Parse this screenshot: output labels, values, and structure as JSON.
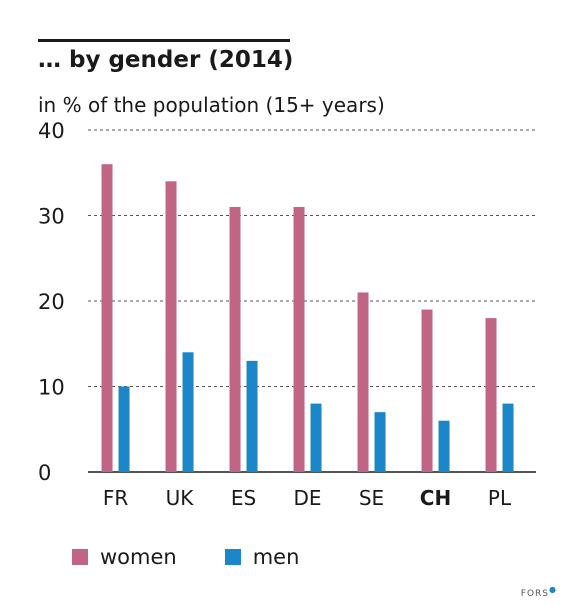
{
  "chart_data": {
    "type": "bar",
    "title": "… by gender (2014)",
    "subtitle": "in % of the population (15+ years)",
    "categories": [
      "FR",
      "UK",
      "ES",
      "DE",
      "SE",
      "CH",
      "PL"
    ],
    "highlighted_category": "CH",
    "series": [
      {
        "name": "women",
        "color": "#c06584",
        "values": [
          36,
          34,
          31,
          31,
          21,
          19,
          18
        ]
      },
      {
        "name": "men",
        "color": "#1b87c9",
        "values": [
          10,
          14,
          13,
          8,
          7,
          6,
          8
        ]
      }
    ],
    "ylim": [
      0,
      40
    ],
    "yticks": [
      0,
      10,
      20,
      30,
      40
    ],
    "grid": "dashed horizontal",
    "legend_position": "bottom"
  },
  "footer": {
    "logo": "FORS"
  }
}
